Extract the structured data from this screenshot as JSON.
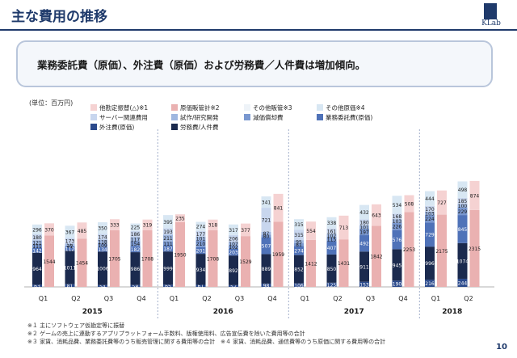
{
  "header": {
    "title": "主な費用の推移",
    "logo_text": "KLab"
  },
  "callout": {
    "text": "業務委託費（原価）、外注費（原価）および労務費／人件費は増加傾向。"
  },
  "unit_label": "(単位：百万円)",
  "colors": {
    "labor": "#1b2a4e",
    "outsourcing": "#2b4a8c",
    "contract": "#4f72b8",
    "depreciation": "#7a98d0",
    "trial": "#9fb7e0",
    "server": "#c8d6ee",
    "other_cost": "#d8e7f3",
    "other_sga": "#eef3f8",
    "sga_cost": "#eab1b1",
    "appraisal": "#f5d2d2"
  },
  "chart_data": {
    "type": "bar",
    "categories": [
      "Q1",
      "Q2",
      "Q3",
      "Q4",
      "Q1",
      "Q2",
      "Q3",
      "Q4",
      "Q1",
      "Q2",
      "Q3",
      "Q4",
      "Q1",
      "Q2"
    ],
    "years": [
      "2015",
      "2016",
      "2017",
      "2018"
    ],
    "ylim": [
      0,
      4500
    ],
    "series": [
      {
        "name": "外注費(原価)",
        "key": "outsourcing",
        "stack": "cost",
        "values": [
          63,
          81,
          54,
          58,
          65,
          61,
          52,
          98,
          106,
          125,
          153,
          190,
          216,
          244
        ]
      },
      {
        "name": "労務費/人件費",
        "key": "labor",
        "stack": "cost",
        "values": [
          964,
          1011,
          1006,
          986,
          999,
          934,
          892,
          889,
          852,
          850,
          911,
          945,
          996,
          1074
        ]
      },
      {
        "name": "業務委託費(原価)",
        "key": "contract",
        "stack": "cost",
        "values": [
          142,
          112,
          134,
          182,
          187,
          201,
          203,
          507,
          274,
          407,
          492,
          576,
          729,
          845
        ]
      },
      {
        "name": "減価償却費",
        "key": "depreciation",
        "stack": "cost",
        "values": [
          111,
          41,
          109,
          154,
          111,
          210,
          102,
          80,
          81,
          115,
          197,
          226,
          224,
          229
        ]
      },
      {
        "name": "試作/研究開発",
        "key": "trial",
        "stack": "cost",
        "values": [
          121,
          56,
          118,
          117,
          211,
          101,
          107,
          87,
          95,
          102,
          101,
          103,
          103,
          100
        ]
      },
      {
        "name": "サーバー関連費用",
        "key": "server",
        "stack": "cost",
        "values": [
          180,
          173,
          174,
          186,
          193,
          177,
          206,
          721,
          315,
          161,
          180,
          168,
          170,
          185
        ]
      },
      {
        "name": "その他原価※4",
        "key": "other_cost",
        "stack": "cost",
        "values": [
          296,
          367,
          350,
          225,
          395,
          274,
          317,
          341,
          315,
          338,
          432,
          534,
          444,
          498
        ]
      },
      {
        "name": "労務費/人件費",
        "key": "labor2",
        "stack": "sga",
        "values": [
          1544,
          1454,
          1705,
          1708,
          1950,
          1708,
          1529,
          1959,
          1412,
          1431,
          1842,
          2253,
          2175,
          2315
        ]
      },
      {
        "name": "原価販管計※2",
        "key": "sga_cost",
        "stack": "sga",
        "values": [
          370,
          485,
          333,
          319,
          235,
          318,
          377,
          841,
          554,
          713,
          643,
          508,
          727,
          874
        ]
      }
    ],
    "legend": [
      {
        "label": "他勘定振替(△)※1",
        "key": "appraisal"
      },
      {
        "label": "原価販管計※2",
        "key": "sga_cost"
      },
      {
        "label": "その他販管※3",
        "key": "other_sga"
      },
      {
        "label": "その他原価※4",
        "key": "other_cost"
      },
      {
        "label": "サーバー関連費用",
        "key": "server"
      },
      {
        "label": "試作/研究開発",
        "key": "trial"
      },
      {
        "label": "減価償却費",
        "key": "depreciation"
      },
      {
        "label": "業務委託費(原価)",
        "key": "contract"
      },
      {
        "label": "外注費(原価)",
        "key": "outsourcing"
      },
      {
        "label": "労務費/人件費",
        "key": "labor"
      }
    ]
  },
  "footnotes": [
    "※１ 主にソフトウェア仮勘定等に振替",
    "※２ ゲームの売上に連動するアプリプラットフォーム手数料、版権使用料、広告宣伝費を除いた費用等の合計",
    "※３ 家賃、消耗品費、業務委託費等のうち販売管理に関する費用等の合計　※４ 家賃、消耗品費、通信費等のうち原価に関する費用等の合計"
  ],
  "page_number": "10"
}
